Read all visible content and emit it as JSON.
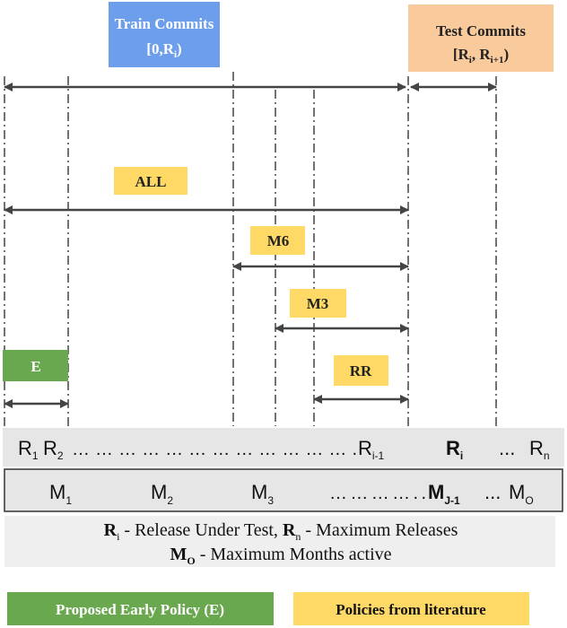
{
  "train": {
    "title": "Train Commits",
    "open": "[0,R",
    "sub": "i",
    "close": ")"
  },
  "test": {
    "title": "Test Commits",
    "open": "[R",
    "sub1": "i",
    "mid": ", R",
    "sub2": "i+1",
    "close": ")"
  },
  "policies": {
    "all": "ALL",
    "m6": "M6",
    "m3": "M3",
    "rr": "RR",
    "e": "E"
  },
  "releases": {
    "r1": {
      "base": "R",
      "sub": "1"
    },
    "r2": {
      "base": "R",
      "sub": "2"
    },
    "dots": "……………………………….",
    "ri1": {
      "base": "R",
      "sub": "i-1"
    },
    "ri": {
      "base": "R",
      "sub": "i"
    },
    "ellipsis": "...",
    "rn": {
      "base": "R",
      "sub": "n"
    }
  },
  "months": {
    "m1": {
      "base": "M",
      "sub": "1"
    },
    "m2": {
      "base": "M",
      "sub": "2"
    },
    "m3": {
      "base": "M",
      "sub": "3"
    },
    "dots": "…………..",
    "mj1": {
      "base": "M",
      "sub": "J-1"
    },
    "ellipsis": "...",
    "mo": {
      "base": "M",
      "sub": "O"
    }
  },
  "legend": {
    "line1": {
      "r": "R",
      "rsub": "i",
      "rtext": " - Release Under Test, ",
      "n": "R",
      "nsub": "n",
      "ntext": " - Maximum Releases"
    },
    "line2": {
      "m": "M",
      "msub": "O",
      "mtext": " - Maximum Months active"
    }
  },
  "key": {
    "early": "Proposed Early Policy (E)",
    "literature": "Policies from literature"
  }
}
